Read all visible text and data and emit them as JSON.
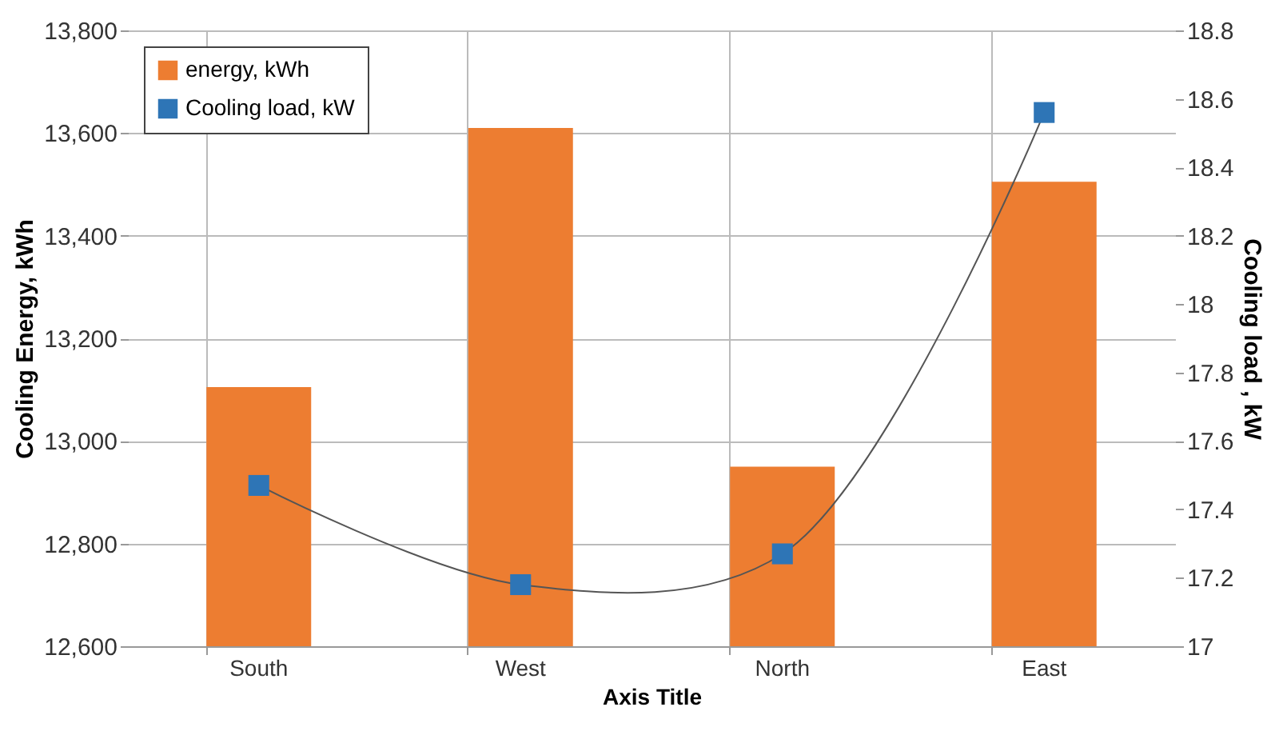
{
  "chart_data": {
    "type": "bar",
    "categories": [
      "South",
      "West",
      "North",
      "East"
    ],
    "xlabel": "Axis Title",
    "ylabel": "Cooling Energy, kWh",
    "y2label": "Cooling load , kW",
    "series": [
      {
        "name": "energy, kWh",
        "color": "#ed7d31",
        "values": [
          13105,
          13610,
          12950,
          13505
        ]
      },
      {
        "name": "Cooling load, kW",
        "type": "line",
        "axis": "y2",
        "color": "#2e75b6",
        "marker": "square",
        "values": [
          17.47,
          17.18,
          17.27,
          18.56
        ]
      }
    ],
    "ylim": [
      12600,
      13800
    ],
    "yticks": [
      {
        "value": 12600,
        "label": "12,600"
      },
      {
        "value": 12800,
        "label": "12,800"
      },
      {
        "value": 13000,
        "label": "13,000"
      },
      {
        "value": 13200,
        "label": "13,200"
      },
      {
        "value": 13400,
        "label": "13,400"
      },
      {
        "value": 13600,
        "label": "13,600"
      },
      {
        "value": 13800,
        "label": "13,800"
      }
    ],
    "y2lim": [
      17,
      18.8
    ],
    "y2ticks": [
      17,
      17.2,
      17.4,
      17.6,
      17.8,
      18,
      18.2,
      18.4,
      18.6,
      18.8
    ],
    "grid": true,
    "legend": "top left"
  }
}
